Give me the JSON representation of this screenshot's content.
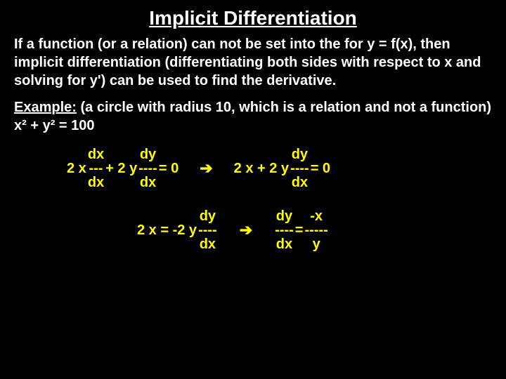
{
  "colors": {
    "background": "#000000",
    "text": "#ffffff",
    "equation": "#ffff00"
  },
  "typography": {
    "title_size": 28,
    "body_size": 20,
    "font_family": "Arial"
  },
  "title": "Implicit Differentiation",
  "intro": "If a function (or a relation) can not be set into the for y = f(x), then implicit differentiation (differentiating both sides with respect to x and solving for y') can be used to find the derivative.",
  "example_label": "Example:",
  "example_text": "  (a circle with radius 10, which is a relation and not a function)  x² + y² = 100",
  "eq1": {
    "left_pre": "2 x ",
    "frac1_num": "dx",
    "frac1_dash": "---",
    "frac1_den": "dx",
    "mid": " + 2 y ",
    "frac2_num": "dy",
    "frac2_dash": "----",
    "frac2_den": "dx",
    "post": "  = 0",
    "arrow": "➔",
    "right_pre": "2 x + 2 y ",
    "frac3_num": "dy",
    "frac3_dash": "----",
    "frac3_den": "dx",
    "right_post": "  = 0"
  },
  "eq2": {
    "left_pre": "2 x = -2 y ",
    "frac1_num": "dy",
    "frac1_dash": "----",
    "frac1_den": "dx",
    "arrow": "➔",
    "frac2_num": "dy",
    "frac2_dash": "----",
    "frac2_den": "dx",
    "mid": " = ",
    "frac3_num": "-x",
    "frac3_dash": "-----",
    "frac3_den": "y"
  }
}
